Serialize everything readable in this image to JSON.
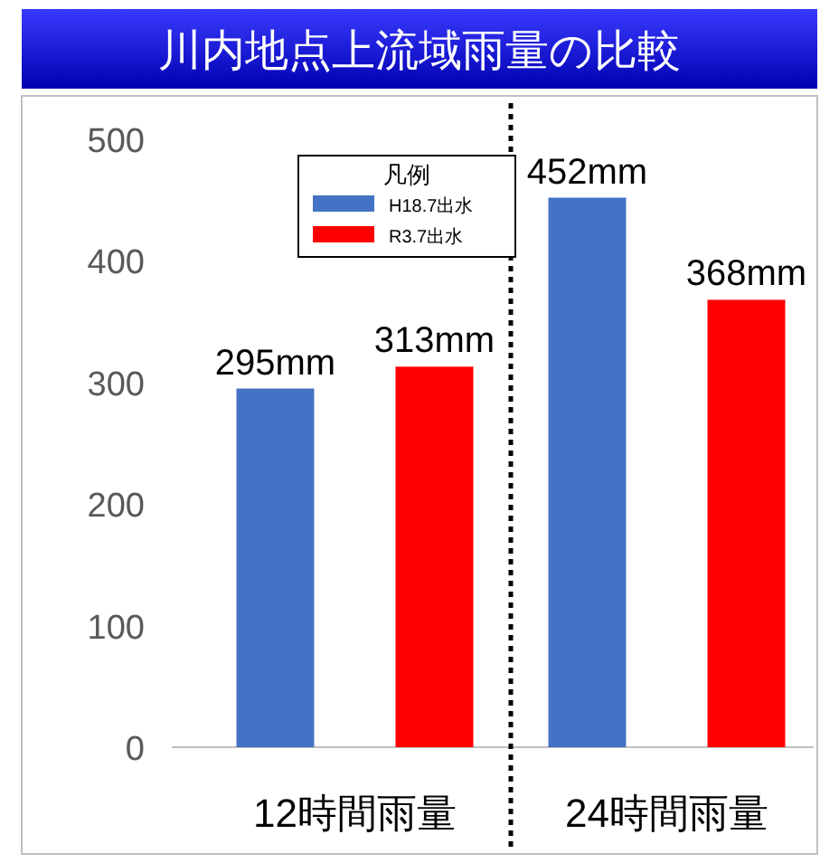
{
  "chart_data": {
    "type": "bar",
    "title": "川内地点上流域雨量の比較",
    "legend_title": "凡例",
    "categories": [
      "12時間雨量",
      "24時間雨量"
    ],
    "series": [
      {
        "name": "H18.7出水",
        "color": "#4472c4",
        "values": [
          295,
          452
        ],
        "value_labels": [
          "295mm",
          "452mm"
        ]
      },
      {
        "name": "R3.7出水",
        "color": "#ff0000",
        "values": [
          313,
          368
        ],
        "value_labels": [
          "313mm",
          "368mm"
        ]
      }
    ],
    "ylim": [
      0,
      500
    ],
    "yticks": [
      0,
      100,
      200,
      300,
      400,
      500
    ],
    "grid": false,
    "legend": "top"
  }
}
